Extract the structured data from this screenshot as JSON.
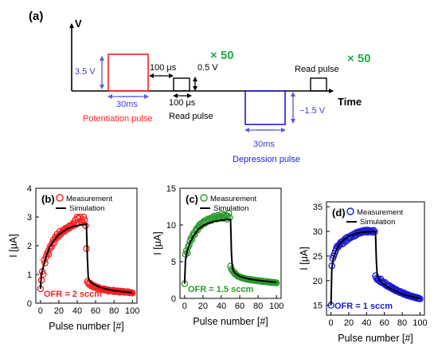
{
  "colors": {
    "red": "#ff1f1f",
    "green": "#2a9a2a",
    "blue": "#1a1ad8",
    "accent_green": "#22aa44",
    "arrow_blue": "#5b5bd6",
    "label_blue": "#4040d0",
    "black": "#000000"
  },
  "pulse_diagram": {
    "panel_label": "(a)",
    "v_axis_label": "V",
    "time_axis_label": "Time",
    "amp_pot": "3.5 V",
    "width_pot": "30ms",
    "pot_caption": "Potentiation pulse",
    "gap_top": "100 μs",
    "read_amp": "0.5 V",
    "gap_bottom": "100 μs",
    "read_caption_1": "Read pulse",
    "repeat_1": "× 50",
    "amp_dep": "−1.5 V",
    "width_dep": "30ms",
    "dep_caption": "Depression pulse",
    "read_caption_2": "Read pulse",
    "repeat_2": "× 50"
  },
  "chart_data": [
    {
      "type": "scatter",
      "panel_label": "(b)",
      "xlabel": "Pulse number [#]",
      "ylabel": "I [μA]",
      "xlim": [
        -5,
        105
      ],
      "ylim": [
        0,
        4
      ],
      "xticks": [
        0,
        20,
        40,
        60,
        80,
        100
      ],
      "yticks": [
        0,
        1,
        2,
        3,
        4
      ],
      "annotation": "OFR = 2 sccm",
      "legend": [
        "Measurement",
        "Simulation"
      ],
      "legend_position": "top-right",
      "color": "#ff1f1f",
      "measurement": {
        "x": [
          0,
          1,
          2,
          3,
          4,
          5,
          6,
          7,
          8,
          9,
          10,
          11,
          12,
          13,
          14,
          15,
          16,
          17,
          18,
          19,
          20,
          21,
          22,
          23,
          24,
          25,
          26,
          27,
          28,
          29,
          30,
          31,
          32,
          33,
          34,
          35,
          36,
          37,
          38,
          39,
          40,
          41,
          42,
          43,
          44,
          45,
          46,
          47,
          48,
          49,
          50,
          51,
          52,
          53,
          54,
          55,
          56,
          57,
          58,
          59,
          60,
          61,
          62,
          63,
          64,
          65,
          66,
          67,
          68,
          69,
          70,
          71,
          72,
          73,
          74,
          75,
          76,
          77,
          78,
          79,
          80,
          81,
          82,
          83,
          84,
          85,
          86,
          87,
          88,
          89,
          90,
          91,
          92,
          93,
          94,
          95,
          96,
          97,
          98,
          99,
          100
        ],
        "y": [
          0.5,
          0.8,
          1.1,
          1.0,
          1.5,
          1.4,
          1.6,
          1.7,
          1.8,
          1.7,
          1.9,
          2.0,
          1.95,
          2.1,
          2.2,
          2.1,
          2.3,
          2.25,
          2.4,
          2.3,
          2.35,
          2.5,
          2.4,
          2.45,
          2.5,
          2.55,
          2.5,
          2.6,
          2.55,
          2.6,
          2.65,
          2.6,
          2.7,
          2.65,
          2.7,
          2.75,
          2.8,
          2.7,
          2.9,
          2.75,
          3.0,
          2.95,
          2.8,
          3.0,
          2.85,
          2.9,
          2.8,
          3.0,
          2.9,
          2.7,
          1.9,
          0.75,
          0.7,
          0.65,
          0.7,
          0.6,
          0.65,
          0.6,
          0.55,
          0.6,
          0.58,
          0.55,
          0.5,
          0.55,
          0.52,
          0.5,
          0.48,
          0.5,
          0.47,
          0.5,
          0.45,
          0.48,
          0.45,
          0.47,
          0.42,
          0.45,
          0.43,
          0.44,
          0.42,
          0.45,
          0.4,
          0.43,
          0.42,
          0.4,
          0.43,
          0.42,
          0.38,
          0.42,
          0.4,
          0.4,
          0.41,
          0.38,
          0.4,
          0.39,
          0.37,
          0.4,
          0.38,
          0.36,
          0.37,
          0.36,
          0.35
        ]
      },
      "simulation": {
        "x": [
          0,
          1,
          3,
          6,
          10,
          15,
          20,
          25,
          30,
          35,
          40,
          45,
          50,
          51,
          52,
          53,
          55,
          60,
          65,
          70,
          75,
          80,
          85,
          90,
          95,
          100
        ],
        "y": [
          0.5,
          0.95,
          1.25,
          1.6,
          1.95,
          2.2,
          2.38,
          2.5,
          2.6,
          2.66,
          2.7,
          2.73,
          2.75,
          1.6,
          0.9,
          0.8,
          0.72,
          0.62,
          0.55,
          0.5,
          0.47,
          0.44,
          0.42,
          0.4,
          0.38,
          0.36
        ]
      }
    },
    {
      "type": "scatter",
      "panel_label": "(c)",
      "xlabel": "Pulse number [#]",
      "ylabel": "I [μA]",
      "xlim": [
        -5,
        105
      ],
      "ylim": [
        0,
        15
      ],
      "xticks": [
        0,
        20,
        40,
        60,
        80,
        100
      ],
      "yticks": [
        0,
        5,
        10,
        15
      ],
      "annotation": "OFR = 1.5 sccm",
      "legend": [
        "Measurement",
        "Simulation"
      ],
      "legend_position": "top-right",
      "color": "#2a9a2a",
      "measurement": {
        "x": [
          0,
          1,
          2,
          3,
          4,
          5,
          6,
          7,
          8,
          9,
          10,
          11,
          12,
          13,
          14,
          15,
          16,
          17,
          18,
          19,
          20,
          21,
          22,
          23,
          24,
          25,
          26,
          27,
          28,
          29,
          30,
          31,
          32,
          33,
          34,
          35,
          36,
          37,
          38,
          39,
          40,
          41,
          42,
          43,
          44,
          45,
          46,
          47,
          48,
          49,
          50,
          51,
          52,
          53,
          54,
          55,
          56,
          57,
          58,
          59,
          60,
          61,
          62,
          63,
          64,
          65,
          66,
          67,
          68,
          69,
          70,
          71,
          72,
          73,
          74,
          75,
          76,
          77,
          78,
          79,
          80,
          81,
          82,
          83,
          84,
          85,
          86,
          87,
          88,
          89,
          90,
          91,
          92,
          93,
          94,
          95,
          96,
          97,
          98,
          99,
          100
        ],
        "y": [
          2.0,
          6.0,
          6.5,
          6.2,
          7.0,
          7.3,
          7.8,
          8.2,
          8.0,
          8.6,
          8.9,
          8.7,
          9.2,
          9.5,
          9.3,
          9.7,
          10.0,
          9.8,
          10.2,
          10.0,
          10.3,
          10.5,
          10.2,
          10.6,
          10.4,
          10.8,
          10.5,
          10.7,
          10.9,
          10.6,
          11.0,
          10.8,
          11.2,
          10.9,
          11.1,
          10.8,
          11.3,
          11.0,
          10.9,
          11.2,
          11.5,
          11.0,
          10.9,
          11.4,
          11.1,
          11.3,
          10.8,
          11.2,
          11.6,
          11.0,
          4.4,
          4.0,
          3.8,
          3.6,
          3.5,
          3.3,
          3.3,
          3.1,
          3.0,
          3.0,
          2.9,
          2.9,
          2.8,
          2.8,
          2.75,
          2.7,
          2.7,
          2.65,
          2.6,
          2.6,
          2.55,
          2.6,
          2.5,
          2.55,
          2.5,
          2.45,
          2.5,
          2.45,
          2.4,
          2.45,
          2.4,
          2.35,
          2.4,
          2.35,
          2.3,
          2.35,
          2.3,
          2.3,
          2.25,
          2.3,
          2.25,
          2.2,
          2.25,
          2.2,
          2.2,
          2.15,
          2.2,
          2.15,
          2.1,
          2.15,
          2.1
        ]
      },
      "simulation": {
        "x": [
          0,
          1,
          3,
          6,
          10,
          15,
          20,
          25,
          30,
          35,
          40,
          45,
          50,
          51,
          52,
          53,
          55,
          60,
          65,
          70,
          75,
          80,
          85,
          90,
          95,
          100
        ],
        "y": [
          2.0,
          5.2,
          6.5,
          7.6,
          8.6,
          9.4,
          9.9,
          10.2,
          10.4,
          10.55,
          10.65,
          10.72,
          10.75,
          6.0,
          4.2,
          3.8,
          3.4,
          3.0,
          2.8,
          2.65,
          2.55,
          2.45,
          2.38,
          2.3,
          2.24,
          2.18
        ]
      }
    },
    {
      "type": "scatter",
      "panel_label": "(d)",
      "xlabel": "Pulse number [#]",
      "ylabel": "I [μA]",
      "xlim": [
        -5,
        105
      ],
      "ylim": [
        13,
        36
      ],
      "xticks": [
        0,
        20,
        40,
        60,
        80,
        100
      ],
      "yticks": [
        15,
        20,
        25,
        30,
        35
      ],
      "annotation": "OFR = 1 sccm",
      "legend": [
        "Measurement",
        "Simulation"
      ],
      "legend_position": "top-right",
      "color": "#1a1ad8",
      "measurement": {
        "x": [
          0,
          1,
          2,
          3,
          4,
          5,
          6,
          7,
          8,
          9,
          10,
          11,
          12,
          13,
          14,
          15,
          16,
          17,
          18,
          19,
          20,
          21,
          22,
          23,
          24,
          25,
          26,
          27,
          28,
          29,
          30,
          31,
          32,
          33,
          34,
          35,
          36,
          37,
          38,
          39,
          40,
          41,
          42,
          43,
          44,
          45,
          46,
          47,
          48,
          49,
          50,
          51,
          52,
          53,
          54,
          55,
          56,
          57,
          58,
          59,
          60,
          61,
          62,
          63,
          64,
          65,
          66,
          67,
          68,
          69,
          70,
          71,
          72,
          73,
          74,
          75,
          76,
          77,
          78,
          79,
          80,
          81,
          82,
          83,
          84,
          85,
          86,
          87,
          88,
          89,
          90,
          91,
          92,
          93,
          94,
          95,
          96,
          97,
          98,
          99,
          100
        ],
        "y": [
          15.0,
          23.0,
          24.5,
          25.0,
          25.5,
          26.0,
          26.5,
          27.0,
          26.8,
          27.2,
          27.5,
          27.8,
          27.4,
          28.0,
          27.6,
          28.2,
          28.5,
          28.0,
          28.8,
          28.3,
          28.6,
          29.0,
          28.7,
          29.2,
          28.9,
          29.4,
          29.0,
          29.6,
          29.2,
          29.8,
          29.5,
          29.9,
          29.6,
          30.0,
          29.7,
          30.1,
          29.8,
          30.2,
          29.9,
          30.0,
          30.3,
          29.8,
          30.0,
          30.2,
          29.9,
          30.1,
          30.0,
          29.8,
          30.2,
          29.9,
          21.0,
          20.5,
          20.2,
          20.4,
          20.0,
          19.8,
          20.3,
          19.6,
          19.8,
          19.5,
          19.3,
          19.6,
          19.0,
          19.2,
          18.9,
          18.7,
          19.0,
          18.5,
          18.7,
          18.3,
          18.5,
          18.1,
          18.3,
          17.9,
          18.1,
          17.8,
          17.9,
          17.6,
          17.8,
          17.5,
          17.6,
          17.3,
          17.5,
          17.2,
          17.3,
          17.0,
          17.2,
          16.9,
          17.0,
          16.8,
          16.9,
          16.7,
          16.8,
          16.6,
          16.7,
          16.5,
          16.6,
          16.4,
          16.5,
          16.4,
          16.3
        ]
      },
      "simulation": {
        "x": [
          0,
          1,
          3,
          6,
          10,
          15,
          20,
          25,
          30,
          35,
          40,
          45,
          50,
          51,
          52,
          53,
          55,
          60,
          65,
          70,
          75,
          80,
          85,
          90,
          95,
          100
        ],
        "y": [
          15.0,
          22.5,
          24.8,
          26.3,
          27.5,
          28.4,
          29.0,
          29.4,
          29.65,
          29.8,
          29.9,
          29.95,
          30.0,
          24.0,
          21.0,
          20.5,
          20.0,
          19.2,
          18.6,
          18.1,
          17.7,
          17.3,
          17.0,
          16.8,
          16.55,
          16.35
        ]
      }
    }
  ]
}
